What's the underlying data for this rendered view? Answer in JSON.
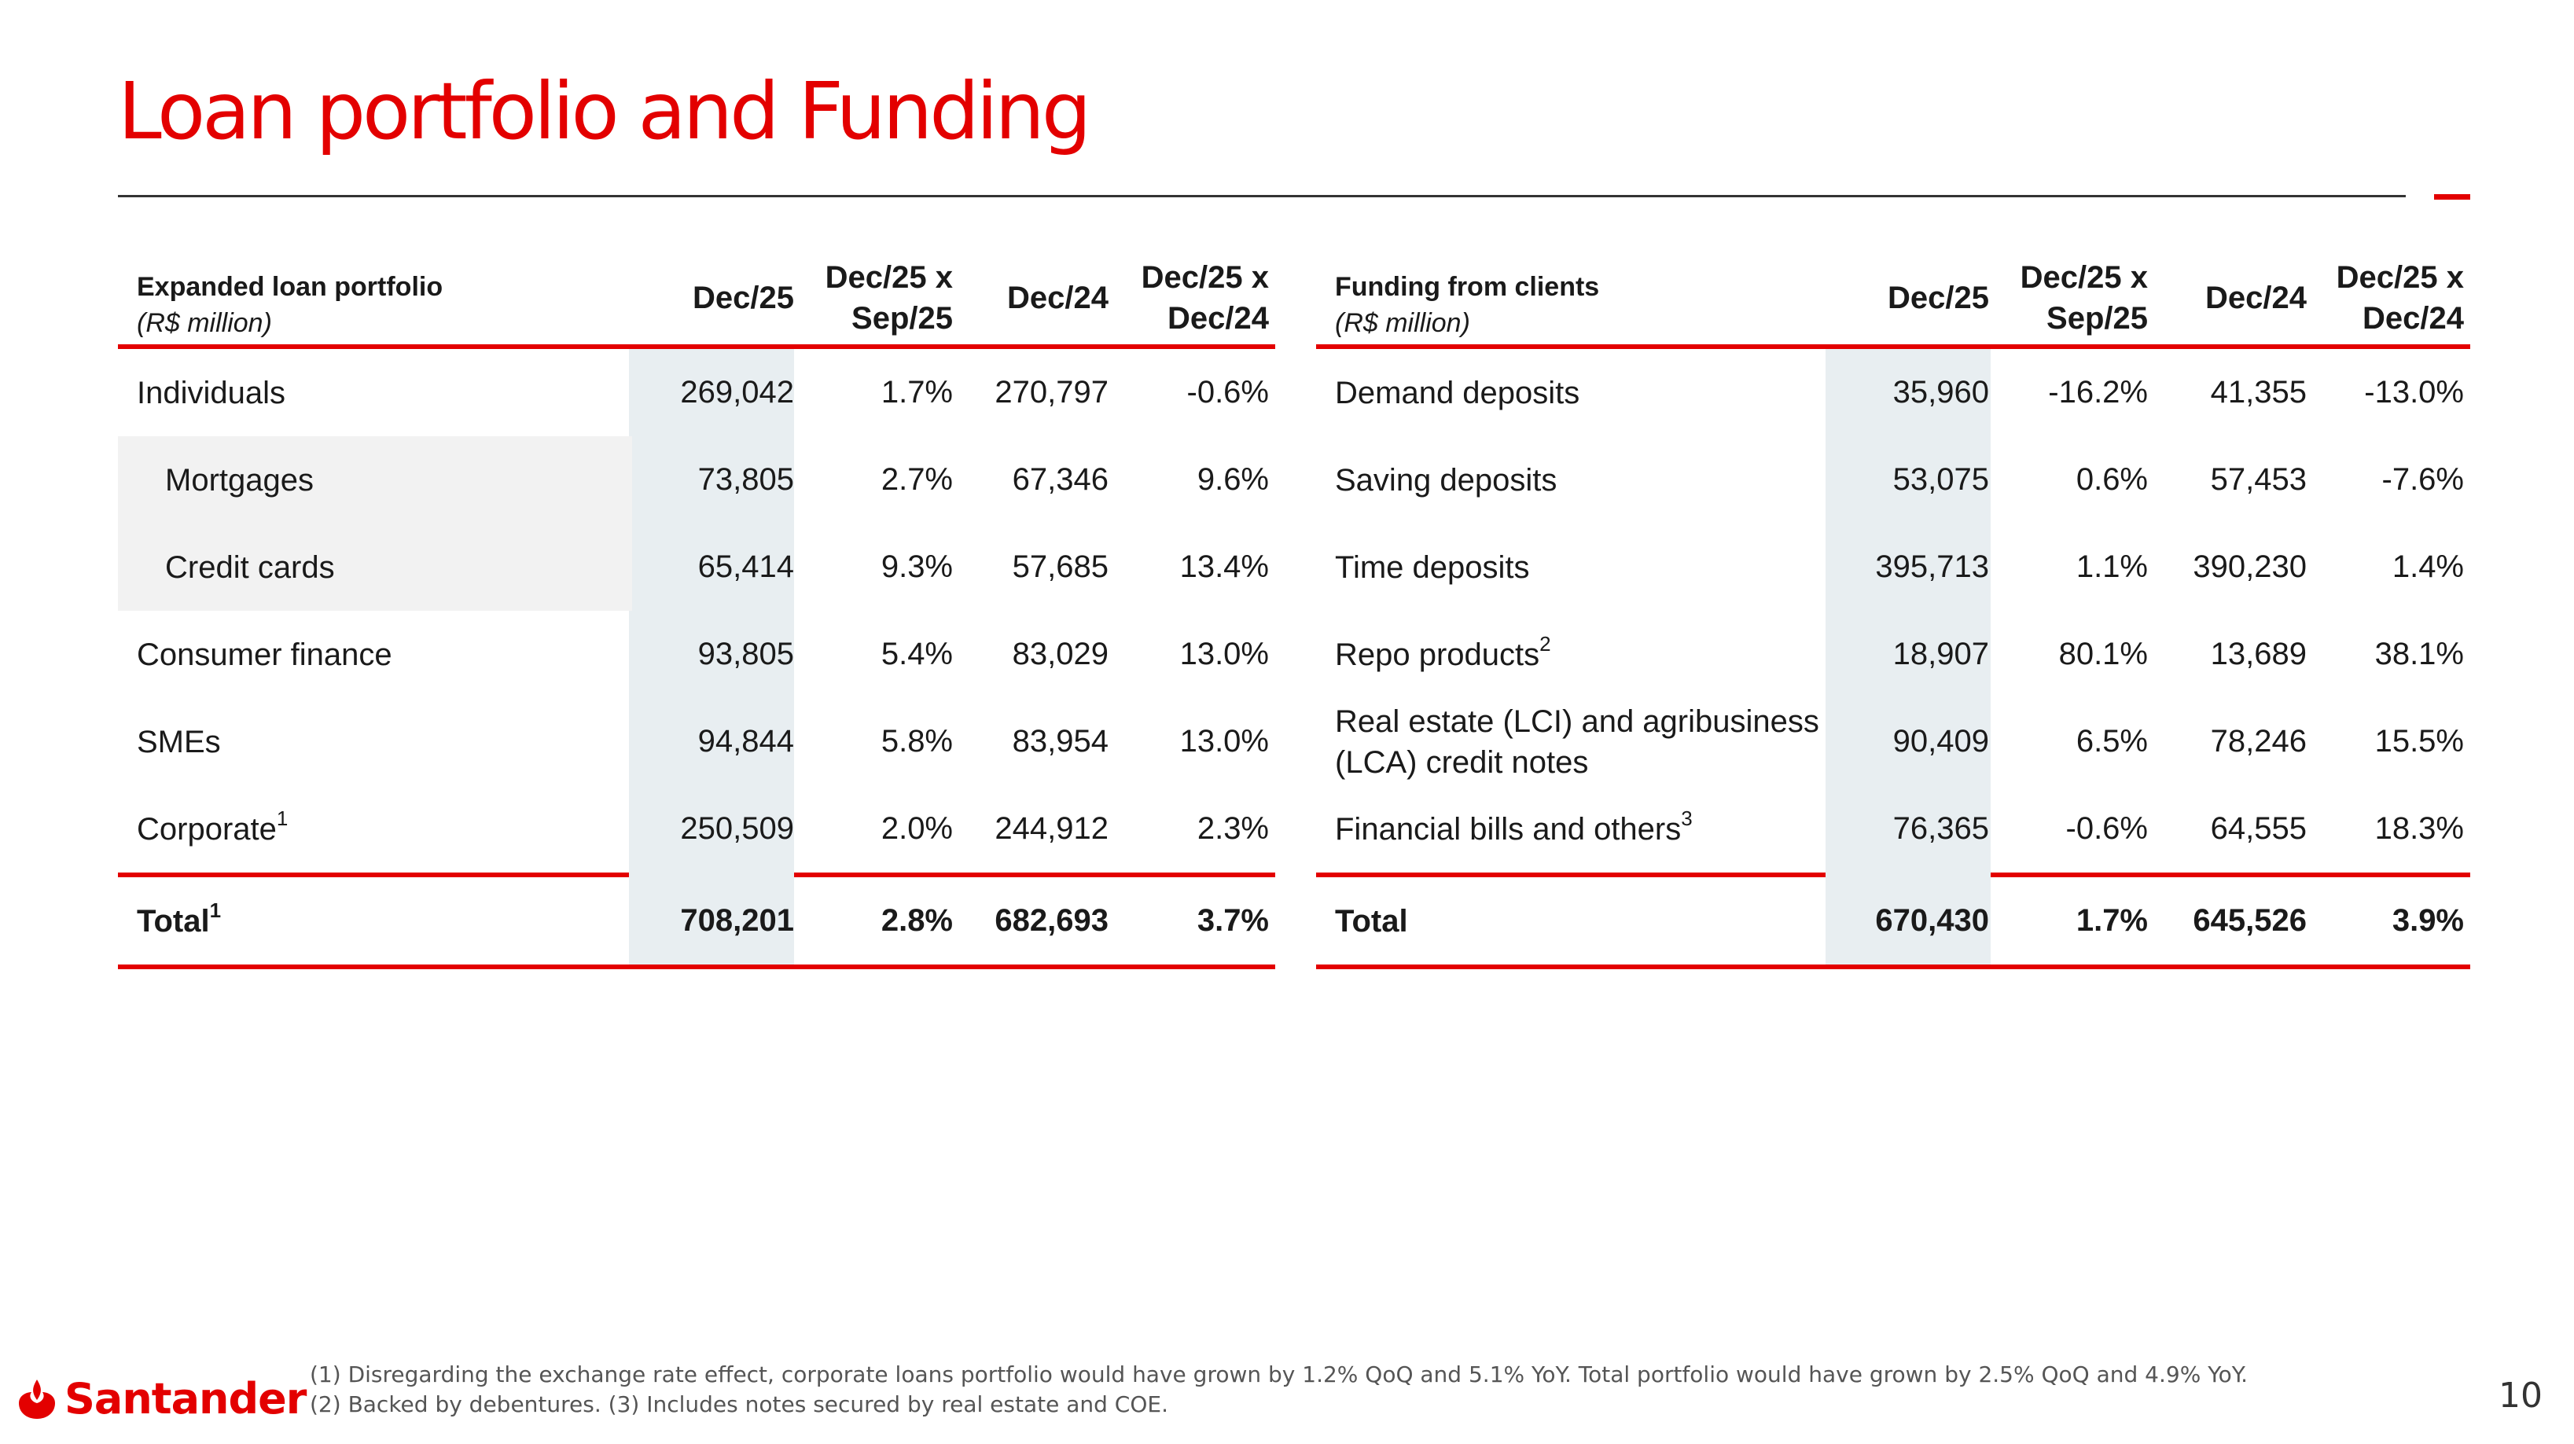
{
  "title": "Loan portfolio and Funding",
  "left_table": {
    "header_label": "Expanded loan portfolio",
    "header_unit": "(R$ million)",
    "col1": "Dec/25",
    "col2a": "Dec/25 x",
    "col2b": "Sep/25",
    "col3": "Dec/24",
    "col4a": "Dec/25 x",
    "col4b": "Dec/24",
    "rows": [
      {
        "label": "Individuals",
        "c1": "269,042",
        "c2": "1.7%",
        "c3": "270,797",
        "c4": "-0.6%"
      },
      {
        "label": "Mortgages",
        "c1": "73,805",
        "c2": "2.7%",
        "c3": "67,346",
        "c4": "9.6%"
      },
      {
        "label": "Credit cards",
        "c1": "65,414",
        "c2": "9.3%",
        "c3": "57,685",
        "c4": "13.4%"
      },
      {
        "label": "Consumer finance",
        "c1": "93,805",
        "c2": "5.4%",
        "c3": "83,029",
        "c4": "13.0%"
      },
      {
        "label": "SMEs",
        "c1": "94,844",
        "c2": "5.8%",
        "c3": "83,954",
        "c4": "13.0%"
      },
      {
        "label": "Corporate",
        "sup": "1",
        "c1": "250,509",
        "c2": "2.0%",
        "c3": "244,912",
        "c4": "2.3%"
      }
    ],
    "total": {
      "label": "Total",
      "sup": "1",
      "c1": "708,201",
      "c2": "2.8%",
      "c3": "682,693",
      "c4": "3.7%"
    }
  },
  "right_table": {
    "header_label": "Funding from clients",
    "header_unit": "(R$ million)",
    "col1": "Dec/25",
    "col2a": "Dec/25 x",
    "col2b": "Sep/25",
    "col3": "Dec/24",
    "col4a": "Dec/25 x",
    "col4b": "Dec/24",
    "rows": [
      {
        "label": "Demand deposits",
        "c1": "35,960",
        "c2": "-16.2%",
        "c3": "41,355",
        "c4": "-13.0%"
      },
      {
        "label": "Saving deposits",
        "c1": "53,075",
        "c2": "0.6%",
        "c3": "57,453",
        "c4": "-7.6%"
      },
      {
        "label": "Time deposits",
        "c1": "395,713",
        "c2": "1.1%",
        "c3": "390,230",
        "c4": "1.4%"
      },
      {
        "label": "Repo products",
        "sup": "2",
        "c1": "18,907",
        "c2": "80.1%",
        "c3": "13,689",
        "c4": "38.1%"
      },
      {
        "label": "Real estate (LCI) and agribusiness (LCA) credit notes",
        "c1": "90,409",
        "c2": "6.5%",
        "c3": "78,246",
        "c4": "15.5%"
      },
      {
        "label": "Financial bills and others",
        "sup": "3",
        "c1": "76,365",
        "c2": "-0.6%",
        "c3": "64,555",
        "c4": "18.3%"
      }
    ],
    "total": {
      "label": "Total",
      "c1": "670,430",
      "c2": "1.7%",
      "c3": "645,526",
      "c4": "3.9%"
    }
  },
  "footnotes": {
    "line1": "(1) Disregarding the exchange rate effect, corporate loans portfolio would have grown by 1.2% QoQ and 5.1% YoY. Total portfolio would have grown by 2.5% QoQ and 4.9% YoY.",
    "line2": "(2) Backed by debentures. (3) Includes notes secured by real estate and COE."
  },
  "brand": "Santander",
  "page_number": "10",
  "colors": {
    "accent": "#e30000",
    "column_shade": "#e8eef1",
    "row_highlight": "#f2f2f2"
  }
}
